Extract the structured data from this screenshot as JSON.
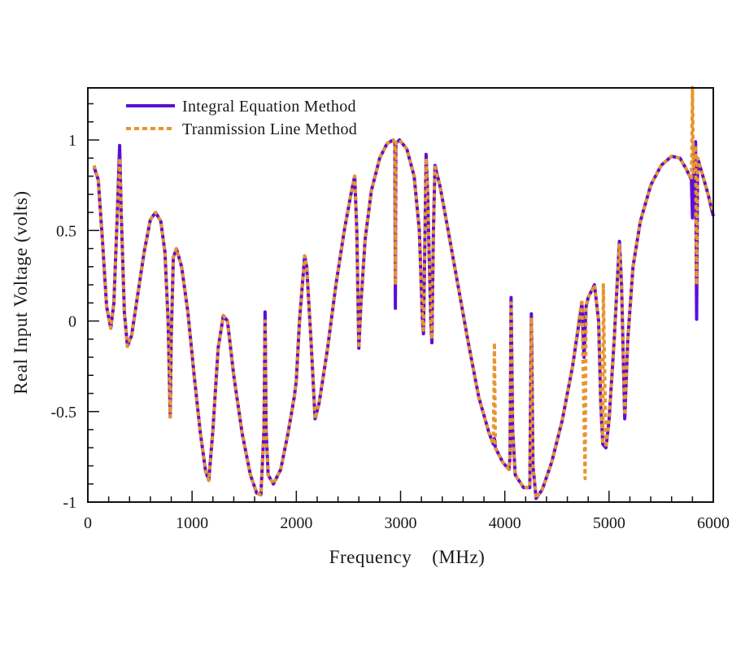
{
  "chart_data": {
    "type": "line",
    "title": "",
    "xlabel": "Frequency    (MHz)",
    "ylabel": "Real Input Voltage (volts)",
    "xlim": [
      0,
      6000
    ],
    "ylim": [
      -1,
      1.3
    ],
    "x_ticks": [
      0,
      1000,
      2000,
      3000,
      4000,
      5000,
      6000
    ],
    "x_tick_labels": [
      "0",
      "1000",
      "2000",
      "3000",
      "4000",
      "5000",
      "6000"
    ],
    "x_minor_step": 200,
    "y_ticks": [
      -1,
      -0.5,
      0,
      0.5,
      1
    ],
    "y_tick_labels": [
      "-1",
      "-0.5",
      "0",
      "0.5",
      "1"
    ],
    "y_minor_step": 0.1,
    "grid": false,
    "legend_position": "top-left",
    "series": [
      {
        "name": "Integral Equation Method",
        "color": "#5a0fd8",
        "style": "solid",
        "points": [
          [
            60,
            0.85
          ],
          [
            100,
            0.78
          ],
          [
            140,
            0.45
          ],
          [
            180,
            0.08
          ],
          [
            220,
            -0.04
          ],
          [
            250,
            0.1
          ],
          [
            280,
            0.55
          ],
          [
            305,
            0.97
          ],
          [
            320,
            0.6
          ],
          [
            350,
            0.05
          ],
          [
            380,
            -0.14
          ],
          [
            420,
            -0.08
          ],
          [
            480,
            0.15
          ],
          [
            540,
            0.38
          ],
          [
            600,
            0.56
          ],
          [
            650,
            0.6
          ],
          [
            700,
            0.55
          ],
          [
            740,
            0.38
          ],
          [
            770,
            0.0
          ],
          [
            790,
            -0.53
          ],
          [
            800,
            -0.1
          ],
          [
            820,
            0.35
          ],
          [
            850,
            0.4
          ],
          [
            900,
            0.3
          ],
          [
            960,
            0.05
          ],
          [
            1020,
            -0.3
          ],
          [
            1080,
            -0.62
          ],
          [
            1130,
            -0.83
          ],
          [
            1160,
            -0.88
          ],
          [
            1200,
            -0.6
          ],
          [
            1250,
            -0.15
          ],
          [
            1300,
            0.03
          ],
          [
            1340,
            0.0
          ],
          [
            1400,
            -0.3
          ],
          [
            1480,
            -0.62
          ],
          [
            1560,
            -0.85
          ],
          [
            1620,
            -0.95
          ],
          [
            1660,
            -0.96
          ],
          [
            1690,
            -0.6
          ],
          [
            1700,
            0.05
          ],
          [
            1710,
            -0.6
          ],
          [
            1730,
            -0.85
          ],
          [
            1780,
            -0.9
          ],
          [
            1850,
            -0.82
          ],
          [
            1920,
            -0.62
          ],
          [
            1980,
            -0.42
          ],
          [
            2000,
            -0.33
          ],
          [
            2030,
            0.0
          ],
          [
            2080,
            0.36
          ],
          [
            2100,
            0.3
          ],
          [
            2140,
            -0.1
          ],
          [
            2180,
            -0.54
          ],
          [
            2220,
            -0.45
          ],
          [
            2300,
            -0.15
          ],
          [
            2380,
            0.2
          ],
          [
            2460,
            0.5
          ],
          [
            2530,
            0.72
          ],
          [
            2560,
            0.8
          ],
          [
            2580,
            0.5
          ],
          [
            2600,
            -0.15
          ],
          [
            2620,
            0.1
          ],
          [
            2660,
            0.45
          ],
          [
            2720,
            0.72
          ],
          [
            2800,
            0.9
          ],
          [
            2870,
            0.98
          ],
          [
            2930,
            1.0
          ],
          [
            2945,
            0.98
          ],
          [
            2950,
            0.07
          ],
          [
            2955,
            0.98
          ],
          [
            2990,
            1.0
          ],
          [
            3060,
            0.95
          ],
          [
            3130,
            0.8
          ],
          [
            3180,
            0.5
          ],
          [
            3210,
            0.0
          ],
          [
            3220,
            -0.07
          ],
          [
            3235,
            0.5
          ],
          [
            3245,
            0.92
          ],
          [
            3260,
            0.7
          ],
          [
            3290,
            0.0
          ],
          [
            3300,
            -0.12
          ],
          [
            3315,
            0.5
          ],
          [
            3330,
            0.86
          ],
          [
            3380,
            0.74
          ],
          [
            3450,
            0.52
          ],
          [
            3550,
            0.2
          ],
          [
            3650,
            -0.12
          ],
          [
            3750,
            -0.42
          ],
          [
            3850,
            -0.62
          ],
          [
            3890,
            -0.68
          ],
          [
            3900,
            -0.65
          ],
          [
            3910,
            -0.7
          ],
          [
            3980,
            -0.78
          ],
          [
            4040,
            -0.82
          ],
          [
            4050,
            -0.75
          ],
          [
            4060,
            0.13
          ],
          [
            4075,
            -0.6
          ],
          [
            4100,
            -0.85
          ],
          [
            4180,
            -0.92
          ],
          [
            4240,
            -0.92
          ],
          [
            4255,
            0.04
          ],
          [
            4270,
            -0.8
          ],
          [
            4300,
            -0.98
          ],
          [
            4360,
            -0.93
          ],
          [
            4450,
            -0.78
          ],
          [
            4550,
            -0.55
          ],
          [
            4650,
            -0.25
          ],
          [
            4740,
            0.1
          ],
          [
            4760,
            -0.2
          ],
          [
            4780,
            0.08
          ],
          [
            4800,
            0.13
          ],
          [
            4860,
            0.2
          ],
          [
            4900,
            0.0
          ],
          [
            4920,
            -0.45
          ],
          [
            4940,
            -0.68
          ],
          [
            4970,
            -0.7
          ],
          [
            5000,
            -0.55
          ],
          [
            5050,
            -0.1
          ],
          [
            5100,
            0.44
          ],
          [
            5120,
            0.2
          ],
          [
            5150,
            -0.54
          ],
          [
            5180,
            -0.1
          ],
          [
            5230,
            0.3
          ],
          [
            5300,
            0.55
          ],
          [
            5400,
            0.75
          ],
          [
            5500,
            0.86
          ],
          [
            5600,
            0.91
          ],
          [
            5680,
            0.9
          ],
          [
            5740,
            0.84
          ],
          [
            5790,
            0.78
          ],
          [
            5800,
            0.57
          ],
          [
            5810,
            0.82
          ],
          [
            5830,
            0.99
          ],
          [
            5840,
            0.01
          ],
          [
            5850,
            0.9
          ],
          [
            5900,
            0.8
          ],
          [
            5950,
            0.7
          ],
          [
            6000,
            0.58
          ]
        ]
      },
      {
        "name": "Tranmission Line Method",
        "color": "#e8952f",
        "style": "dashed",
        "points": [
          [
            60,
            0.86
          ],
          [
            100,
            0.78
          ],
          [
            140,
            0.45
          ],
          [
            180,
            0.08
          ],
          [
            220,
            -0.04
          ],
          [
            250,
            0.1
          ],
          [
            280,
            0.55
          ],
          [
            305,
            0.9
          ],
          [
            320,
            0.6
          ],
          [
            350,
            0.05
          ],
          [
            380,
            -0.14
          ],
          [
            420,
            -0.08
          ],
          [
            480,
            0.15
          ],
          [
            540,
            0.38
          ],
          [
            600,
            0.56
          ],
          [
            650,
            0.6
          ],
          [
            700,
            0.55
          ],
          [
            740,
            0.38
          ],
          [
            770,
            0.0
          ],
          [
            790,
            -0.53
          ],
          [
            800,
            -0.1
          ],
          [
            820,
            0.35
          ],
          [
            850,
            0.4
          ],
          [
            900,
            0.3
          ],
          [
            960,
            0.05
          ],
          [
            1020,
            -0.3
          ],
          [
            1080,
            -0.62
          ],
          [
            1130,
            -0.83
          ],
          [
            1160,
            -0.88
          ],
          [
            1200,
            -0.6
          ],
          [
            1250,
            -0.15
          ],
          [
            1300,
            0.03
          ],
          [
            1340,
            0.0
          ],
          [
            1400,
            -0.3
          ],
          [
            1480,
            -0.62
          ],
          [
            1560,
            -0.85
          ],
          [
            1620,
            -0.95
          ],
          [
            1660,
            -0.96
          ],
          [
            1690,
            -0.6
          ],
          [
            1700,
            0.0
          ],
          [
            1710,
            -0.6
          ],
          [
            1730,
            -0.85
          ],
          [
            1780,
            -0.9
          ],
          [
            1850,
            -0.82
          ],
          [
            1920,
            -0.62
          ],
          [
            1980,
            -0.42
          ],
          [
            2000,
            -0.33
          ],
          [
            2030,
            0.0
          ],
          [
            2080,
            0.36
          ],
          [
            2100,
            0.3
          ],
          [
            2140,
            -0.1
          ],
          [
            2180,
            -0.54
          ],
          [
            2220,
            -0.45
          ],
          [
            2300,
            -0.15
          ],
          [
            2380,
            0.2
          ],
          [
            2460,
            0.5
          ],
          [
            2530,
            0.72
          ],
          [
            2560,
            0.8
          ],
          [
            2580,
            0.5
          ],
          [
            2600,
            -0.15
          ],
          [
            2620,
            0.1
          ],
          [
            2660,
            0.45
          ],
          [
            2720,
            0.72
          ],
          [
            2800,
            0.9
          ],
          [
            2870,
            0.98
          ],
          [
            2930,
            1.0
          ],
          [
            2945,
            0.98
          ],
          [
            2950,
            0.2
          ],
          [
            2955,
            0.98
          ],
          [
            2990,
            1.0
          ],
          [
            3060,
            0.95
          ],
          [
            3130,
            0.8
          ],
          [
            3180,
            0.5
          ],
          [
            3210,
            0.0
          ],
          [
            3220,
            -0.05
          ],
          [
            3235,
            0.5
          ],
          [
            3245,
            0.9
          ],
          [
            3260,
            0.7
          ],
          [
            3290,
            0.0
          ],
          [
            3300,
            -0.1
          ],
          [
            3315,
            0.5
          ],
          [
            3330,
            0.85
          ],
          [
            3380,
            0.74
          ],
          [
            3450,
            0.52
          ],
          [
            3550,
            0.2
          ],
          [
            3650,
            -0.12
          ],
          [
            3750,
            -0.42
          ],
          [
            3850,
            -0.62
          ],
          [
            3890,
            -0.68
          ],
          [
            3900,
            -0.12
          ],
          [
            3910,
            -0.7
          ],
          [
            3980,
            -0.78
          ],
          [
            4040,
            -0.82
          ],
          [
            4050,
            -0.75
          ],
          [
            4060,
            0.1
          ],
          [
            4075,
            -0.6
          ],
          [
            4100,
            -0.85
          ],
          [
            4180,
            -0.92
          ],
          [
            4240,
            -0.92
          ],
          [
            4255,
            0.02
          ],
          [
            4270,
            -0.8
          ],
          [
            4300,
            -0.98
          ],
          [
            4360,
            -0.93
          ],
          [
            4450,
            -0.78
          ],
          [
            4550,
            -0.55
          ],
          [
            4650,
            -0.25
          ],
          [
            4740,
            0.12
          ],
          [
            4770,
            -0.87
          ],
          [
            4780,
            0.08
          ],
          [
            4800,
            0.13
          ],
          [
            4860,
            0.2
          ],
          [
            4900,
            0.0
          ],
          [
            4920,
            -0.45
          ],
          [
            4940,
            -0.68
          ],
          [
            4945,
            0.2
          ],
          [
            4970,
            -0.7
          ],
          [
            5000,
            -0.55
          ],
          [
            5050,
            -0.1
          ],
          [
            5100,
            0.42
          ],
          [
            5120,
            0.2
          ],
          [
            5150,
            -0.52
          ],
          [
            5180,
            -0.1
          ],
          [
            5230,
            0.3
          ],
          [
            5300,
            0.55
          ],
          [
            5400,
            0.75
          ],
          [
            5500,
            0.86
          ],
          [
            5600,
            0.91
          ],
          [
            5680,
            0.9
          ],
          [
            5740,
            0.84
          ],
          [
            5790,
            0.78
          ],
          [
            5800,
            1.29
          ],
          [
            5810,
            0.82
          ],
          [
            5830,
            0.97
          ],
          [
            5840,
            0.2
          ],
          [
            5850,
            0.9
          ],
          [
            5900,
            0.8
          ],
          [
            5950,
            0.7
          ],
          [
            6000,
            0.6
          ]
        ]
      }
    ]
  }
}
